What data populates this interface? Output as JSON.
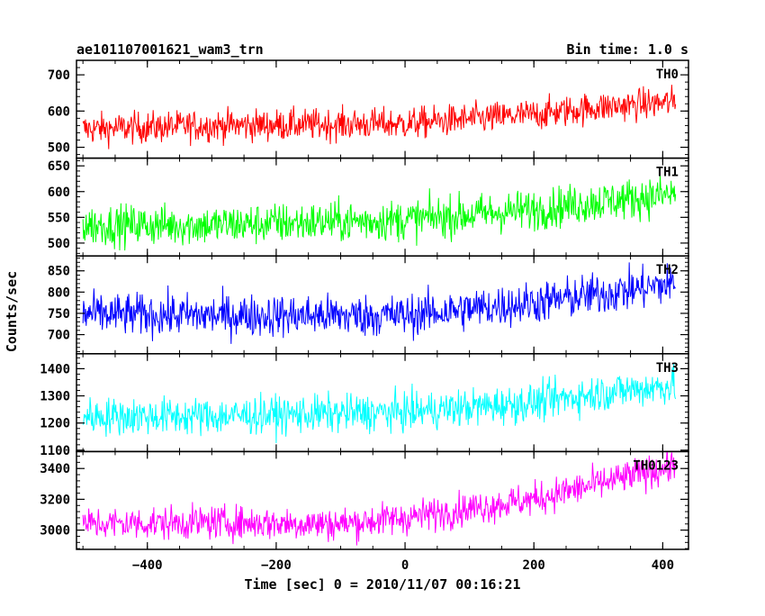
{
  "chart_data": {
    "type": "line",
    "title": "ae101107001621_wam3_trn",
    "bin_time": "Bin time: 1.0 s",
    "xlabel": "Time [sec] 0 = 2010/11/07 00:16:21",
    "ylabel": "Counts/sec",
    "xlim": [
      -510,
      440
    ],
    "x_ticks": [
      -400,
      -200,
      0,
      200,
      400
    ],
    "x_step": 1,
    "x_range_data": [
      -500,
      420
    ],
    "panels": [
      {
        "name": "TH0",
        "color": "#ff0000",
        "ylim": [
          470,
          740
        ],
        "y_ticks": [
          500,
          600,
          700
        ],
        "trend": [
          [
            -500,
            550
          ],
          [
            -300,
            560
          ],
          [
            0,
            565
          ],
          [
            200,
            590
          ],
          [
            300,
            610
          ],
          [
            420,
            625
          ]
        ],
        "noise": 22
      },
      {
        "name": "TH1",
        "color": "#00ff00",
        "ylim": [
          475,
          665
        ],
        "y_ticks": [
          500,
          550,
          600,
          650
        ],
        "trend": [
          [
            -500,
            535
          ],
          [
            -300,
            535
          ],
          [
            0,
            545
          ],
          [
            200,
            565
          ],
          [
            300,
            580
          ],
          [
            420,
            595
          ]
        ],
        "noise": 20
      },
      {
        "name": "TH2",
        "color": "#0000ff",
        "ylim": [
          655,
          885
        ],
        "y_ticks": [
          700,
          750,
          800,
          850
        ],
        "trend": [
          [
            -500,
            748
          ],
          [
            -300,
            745
          ],
          [
            0,
            745
          ],
          [
            200,
            775
          ],
          [
            300,
            795
          ],
          [
            420,
            820
          ]
        ],
        "noise": 25
      },
      {
        "name": "TH3",
        "color": "#00ffff",
        "ylim": [
          1095,
          1455
        ],
        "y_ticks": [
          1100,
          1200,
          1300,
          1400
        ],
        "trend": [
          [
            -500,
            1225
          ],
          [
            -300,
            1225
          ],
          [
            0,
            1240
          ],
          [
            200,
            1275
          ],
          [
            300,
            1310
          ],
          [
            420,
            1340
          ]
        ],
        "noise": 35
      },
      {
        "name": "TH0123",
        "color": "#ff00ff",
        "ylim": [
          2875,
          3510
        ],
        "y_ticks": [
          3000,
          3200,
          3400
        ],
        "trend": [
          [
            -500,
            3040
          ],
          [
            -300,
            3050
          ],
          [
            -100,
            3040
          ],
          [
            0,
            3080
          ],
          [
            200,
            3200
          ],
          [
            300,
            3300
          ],
          [
            420,
            3420
          ]
        ],
        "noise": 55
      }
    ]
  }
}
